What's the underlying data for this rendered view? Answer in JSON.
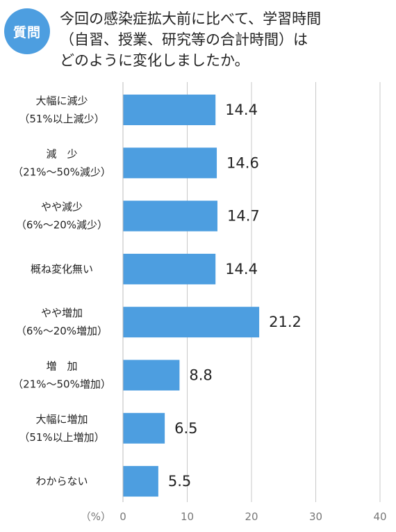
{
  "badge": {
    "text": "質問"
  },
  "question": {
    "lines": [
      "今回の感染症拡大前に比べて、学習時間",
      "（自習、授業、研究等の合計時間）は",
      "どのように変化しましたか。"
    ]
  },
  "chart_data": {
    "type": "bar",
    "orientation": "horizontal",
    "categories": [
      [
        "大幅に減少",
        "（51%以上減少）"
      ],
      [
        "減　少",
        "（21%〜50%減少）"
      ],
      [
        "やや減少",
        "（6%〜20%減少）"
      ],
      [
        "概ね変化無い"
      ],
      [
        "やや増加",
        "（6%〜20%増加）"
      ],
      [
        "増　加",
        "（21%〜50%増加）"
      ],
      [
        "大幅に増加",
        "（51%以上増加）"
      ],
      [
        "わからない"
      ]
    ],
    "values": [
      14.4,
      14.6,
      14.7,
      14.4,
      21.2,
      8.8,
      6.5,
      5.5
    ],
    "value_labels": [
      "14.4",
      "14.6",
      "14.7",
      "14.4",
      "21.2",
      "8.8",
      "6.5",
      "5.5"
    ],
    "xlim": [
      0,
      40
    ],
    "xticks": [
      0,
      10,
      20,
      30,
      40
    ],
    "unit": "（%）",
    "grid": "vertical",
    "bar_color": "#4d9ee0",
    "grid_color": "#c8c8c8"
  }
}
